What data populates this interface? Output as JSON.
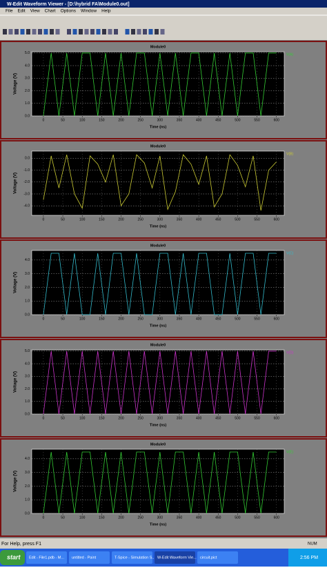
{
  "window": {
    "title": "W-Edit Waveform Viewer - [D:\\hybrid FA\\Module0.out]",
    "menu": [
      "File",
      "Edit",
      "View",
      "Chart",
      "Options",
      "Window",
      "Help"
    ]
  },
  "status": {
    "help": "For Help, press F1",
    "num": "NUM"
  },
  "taskbar": {
    "start": "start",
    "tasks": [
      "Edit - File1.pdb - M...",
      "untitled - Paint",
      "T-Spice - Simulation S...",
      "W-Edit Waveform Vie...",
      "circuit.pict"
    ],
    "clock": "2:56 PM"
  },
  "chart_data": [
    {
      "type": "line",
      "title": "Module0",
      "xlabel": "Time (ns)",
      "ylabel": "Voltage (V)",
      "x": [
        0,
        20,
        40,
        60,
        80,
        100,
        120,
        140,
        160,
        180,
        200,
        220,
        240,
        260,
        280,
        300,
        320,
        340,
        360,
        380,
        400,
        420,
        440,
        460,
        480,
        500,
        520,
        540,
        560,
        580,
        600
      ],
      "series": [
        {
          "name": "V(A)",
          "color": "#33cc33",
          "values": [
            0,
            5,
            0,
            5,
            0,
            5,
            5,
            0,
            5,
            0,
            5,
            0,
            5,
            5,
            0,
            5,
            0,
            5,
            0,
            5,
            5,
            0,
            5,
            0,
            5,
            0,
            5,
            5,
            0,
            5,
            5
          ]
        }
      ],
      "xlim": [
        -30,
        620
      ],
      "ylim": [
        0,
        5.1
      ],
      "xticks": [
        0,
        50,
        100,
        150,
        200,
        250,
        300,
        350,
        400,
        450,
        500,
        550,
        600
      ],
      "yticks": [
        {
          "value": 0,
          "label": "0.0"
        },
        {
          "value": 1,
          "label": "1.0"
        },
        {
          "value": 2,
          "label": "2.0"
        },
        {
          "value": 3,
          "label": "3.0"
        },
        {
          "value": 4,
          "label": "4.0"
        },
        {
          "value": 5,
          "label": "5.0"
        }
      ],
      "grid": true
    },
    {
      "type": "line",
      "title": "Module0",
      "xlabel": "Time (ns)",
      "ylabel": "Voltage (V)",
      "x": [
        0,
        20,
        40,
        60,
        80,
        100,
        120,
        140,
        160,
        180,
        200,
        220,
        240,
        260,
        280,
        300,
        320,
        340,
        360,
        380,
        400,
        420,
        440,
        460,
        480,
        500,
        520,
        540,
        560,
        580,
        600
      ],
      "series": [
        {
          "name": "V(B)",
          "color": "#cccc33",
          "values": [
            -3.5,
            0.2,
            -2.5,
            0.3,
            -3,
            -4.2,
            0.2,
            -0.5,
            -2,
            0.3,
            -4,
            -3,
            0.3,
            -0.4,
            -2.5,
            0.2,
            -4.3,
            -2.8,
            0.3,
            -0.5,
            -2.2,
            0.2,
            -4.1,
            -3,
            0.3,
            -0.6,
            -2.4,
            0.2,
            -4.4,
            -1,
            -0.3
          ]
        }
      ],
      "xlim": [
        -30,
        620
      ],
      "ylim": [
        -4.8,
        0.6
      ],
      "xticks": [
        0,
        50,
        100,
        150,
        200,
        250,
        300,
        350,
        400,
        450,
        500,
        550,
        600
      ],
      "yticks": [
        {
          "value": -4,
          "label": "-4.0"
        },
        {
          "value": -3,
          "label": "-3.0"
        },
        {
          "value": -2,
          "label": "-2.0"
        },
        {
          "value": -1,
          "label": "-1.0"
        },
        {
          "value": 0,
          "label": "0.0"
        }
      ],
      "grid": true
    },
    {
      "type": "line",
      "title": "Module0",
      "xlabel": "Time (ns)",
      "ylabel": "Voltage (V)",
      "x": [
        0,
        20,
        40,
        60,
        80,
        100,
        120,
        140,
        160,
        180,
        200,
        220,
        240,
        260,
        280,
        300,
        320,
        340,
        360,
        380,
        400,
        420,
        440,
        460,
        480,
        500,
        520,
        540,
        560,
        580,
        600
      ],
      "series": [
        {
          "name": "V(C)",
          "color": "#33bbcc",
          "values": [
            0,
            4.5,
            4.5,
            0,
            4.5,
            0,
            0,
            4.5,
            0,
            4.5,
            4.5,
            0,
            4.5,
            0,
            0,
            4.5,
            4.5,
            0,
            4.5,
            0,
            4.5,
            4.5,
            0,
            0,
            4.5,
            0,
            4.5,
            4.5,
            0,
            4.5,
            4.5
          ]
        }
      ],
      "xlim": [
        -30,
        620
      ],
      "ylim": [
        0,
        4.7
      ],
      "xticks": [
        0,
        50,
        100,
        150,
        200,
        250,
        300,
        350,
        400,
        450,
        500,
        550,
        600
      ],
      "yticks": [
        {
          "value": 0,
          "label": "0.0"
        },
        {
          "value": 1,
          "label": "1.0"
        },
        {
          "value": 2,
          "label": "2.0"
        },
        {
          "value": 3,
          "label": "3.0"
        },
        {
          "value": 4,
          "label": "4.0"
        }
      ],
      "grid": true
    },
    {
      "type": "line",
      "title": "Module0",
      "xlabel": "Time (ns)",
      "ylabel": "Voltage (V)",
      "x": [
        0,
        20,
        40,
        60,
        80,
        100,
        120,
        140,
        160,
        180,
        200,
        220,
        240,
        260,
        280,
        300,
        320,
        340,
        360,
        380,
        400,
        420,
        440,
        460,
        480,
        500,
        520,
        540,
        560,
        580,
        600
      ],
      "series": [
        {
          "name": "V(D)",
          "color": "#cc33cc",
          "values": [
            0,
            5,
            0,
            5,
            0,
            5,
            0,
            5,
            0,
            5,
            0,
            5,
            0,
            5,
            0,
            5,
            0,
            5,
            0,
            5,
            0,
            5,
            0,
            5,
            0,
            5,
            0,
            5,
            0,
            5,
            5
          ]
        }
      ],
      "xlim": [
        -30,
        620
      ],
      "ylim": [
        0,
        5.1
      ],
      "xticks": [
        0,
        50,
        100,
        150,
        200,
        250,
        300,
        350,
        400,
        450,
        500,
        550,
        600
      ],
      "yticks": [
        {
          "value": 0,
          "label": "0.0"
        },
        {
          "value": 1,
          "label": "1.0"
        },
        {
          "value": 2,
          "label": "2.0"
        },
        {
          "value": 3,
          "label": "3.0"
        },
        {
          "value": 4,
          "label": "4.0"
        },
        {
          "value": 5,
          "label": "5.0"
        }
      ],
      "grid": true
    },
    {
      "type": "line",
      "title": "Module0",
      "xlabel": "Time (ns)",
      "ylabel": "Voltage (V)",
      "x": [
        0,
        20,
        40,
        60,
        80,
        100,
        120,
        140,
        160,
        180,
        200,
        220,
        240,
        260,
        280,
        300,
        320,
        340,
        360,
        380,
        400,
        420,
        440,
        460,
        480,
        500,
        520,
        540,
        560,
        580,
        600
      ],
      "series": [
        {
          "name": "V(E)",
          "color": "#33cc33",
          "values": [
            0,
            4.5,
            0,
            4.5,
            0,
            4.5,
            4.5,
            0,
            4.5,
            0,
            4.5,
            0,
            4.5,
            4.5,
            0,
            4.5,
            0,
            4.5,
            4.5,
            0,
            4.5,
            0,
            4.5,
            0,
            4.5,
            4.5,
            0,
            4.5,
            0,
            4.5,
            4.5
          ]
        }
      ],
      "xlim": [
        -30,
        620
      ],
      "ylim": [
        0,
        4.7
      ],
      "xticks": [
        0,
        50,
        100,
        150,
        200,
        250,
        300,
        350,
        400,
        450,
        500,
        550,
        600
      ],
      "yticks": [
        {
          "value": 0,
          "label": "0.0"
        },
        {
          "value": 1,
          "label": "1.0"
        },
        {
          "value": 2,
          "label": "2.0"
        },
        {
          "value": 3,
          "label": "3.0"
        },
        {
          "value": 4,
          "label": "4.0"
        }
      ],
      "grid": true
    }
  ]
}
